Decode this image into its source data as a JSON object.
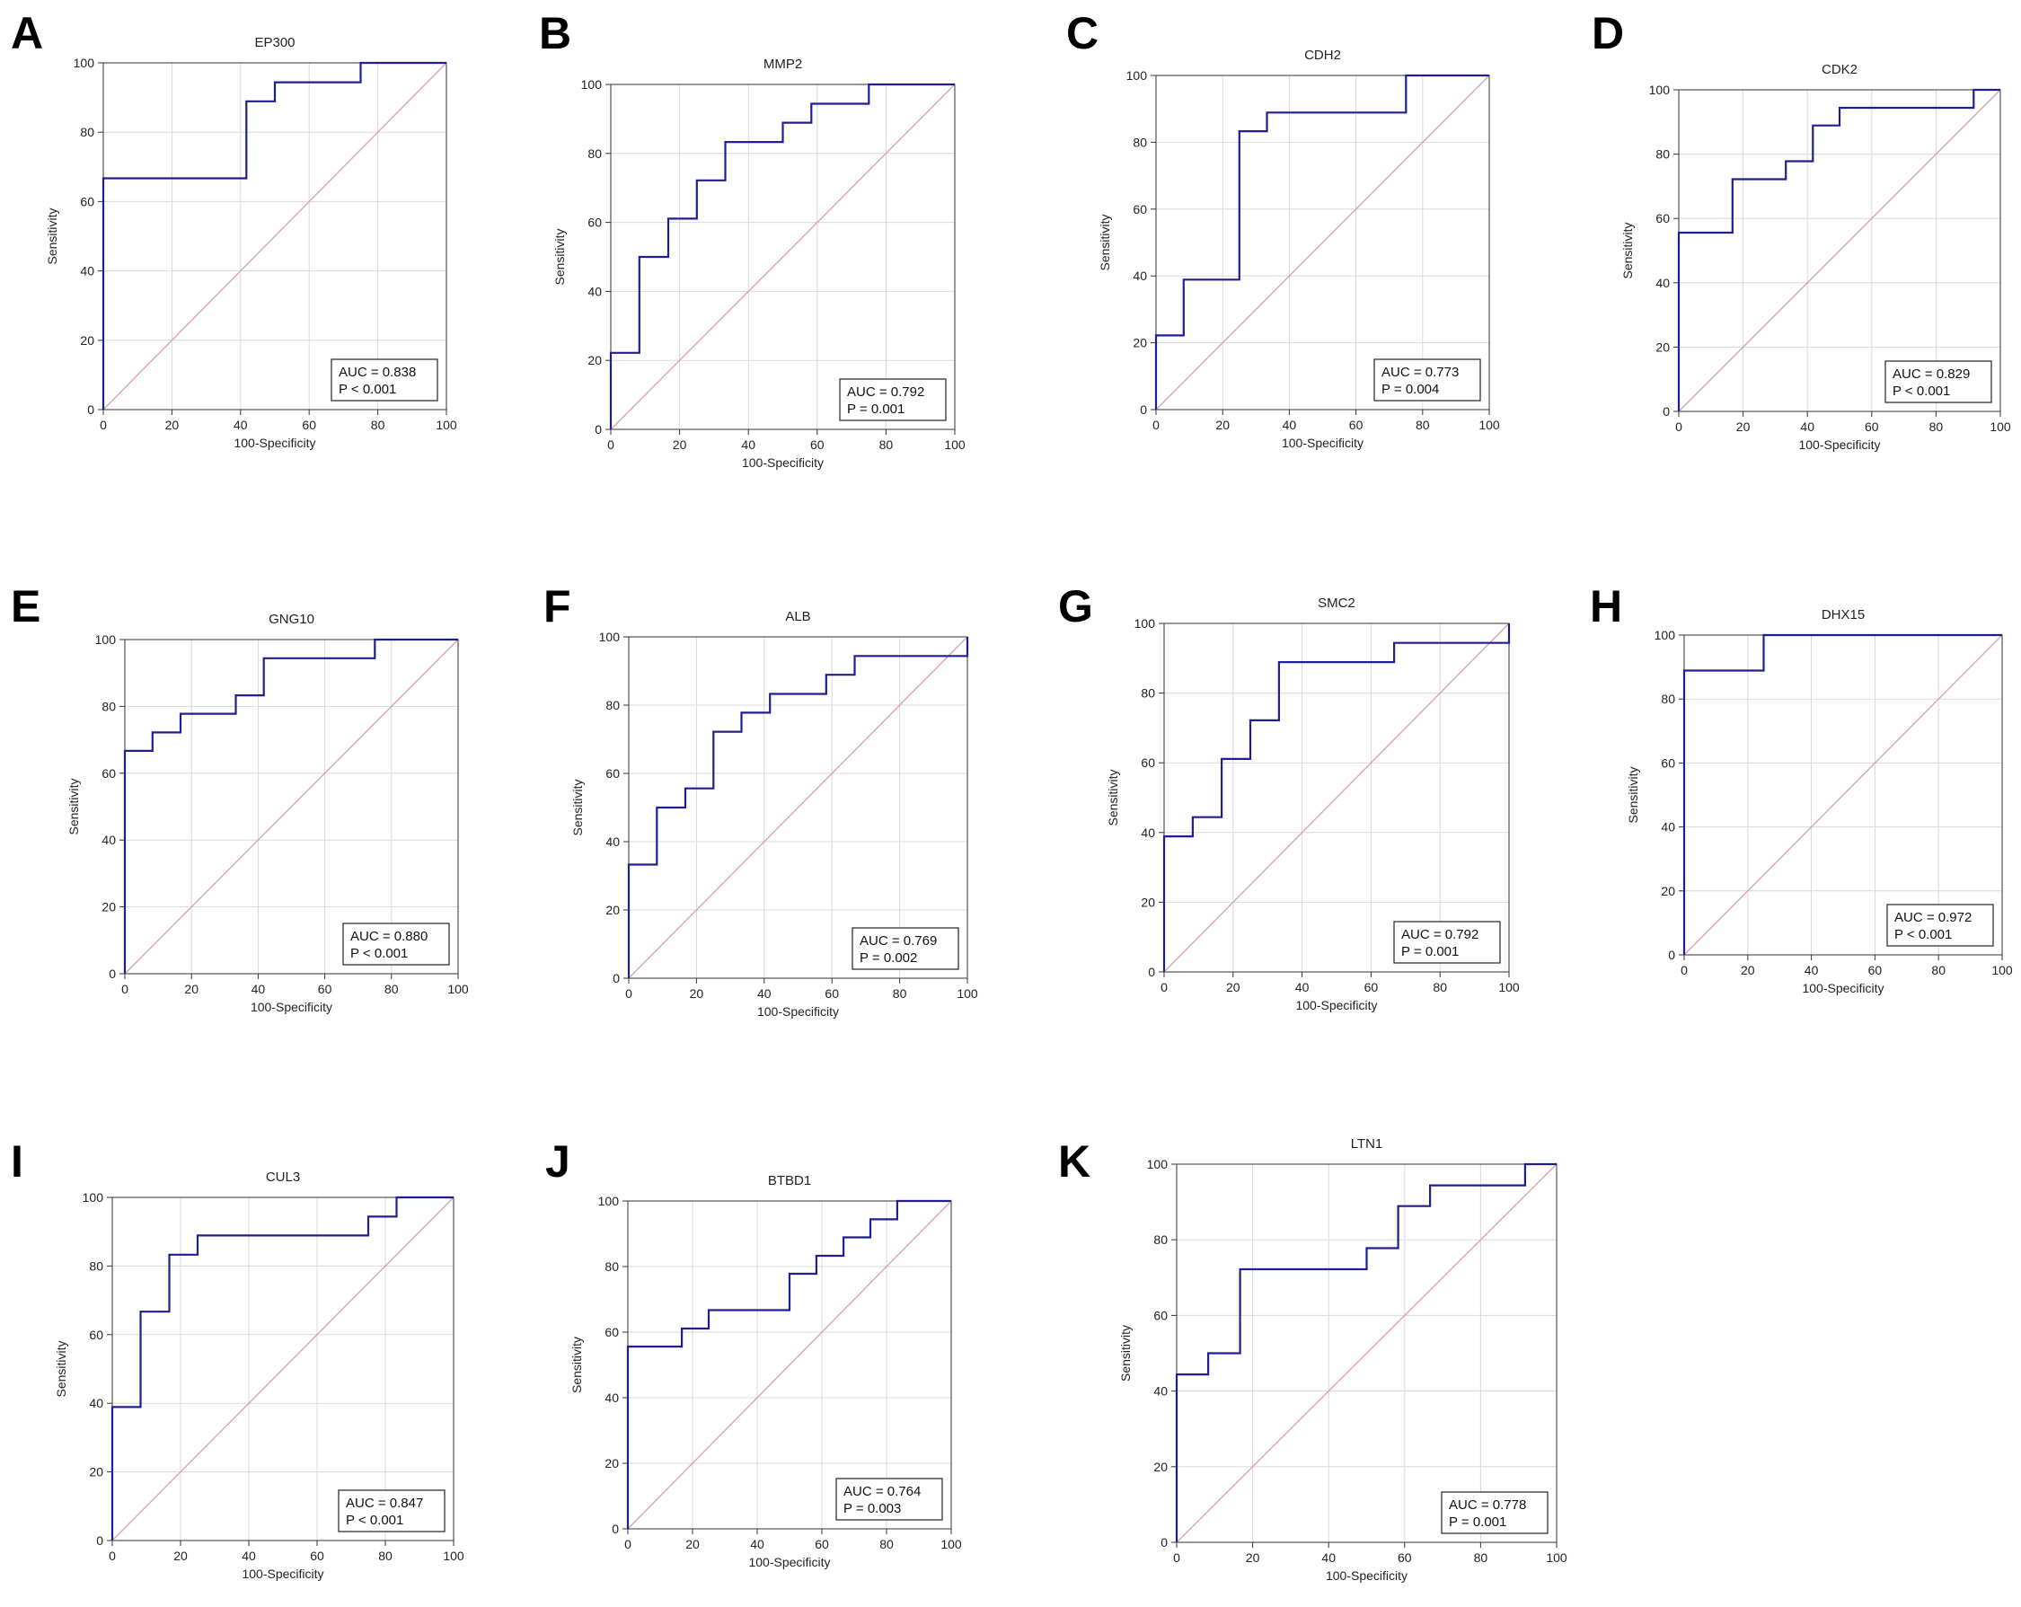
{
  "figure": {
    "x_axis_label": "100-Specificity",
    "y_axis_label": "Sensitivity",
    "ticks": [
      "0",
      "20",
      "40",
      "60",
      "80",
      "100"
    ],
    "roc_color": "#1f1f8f",
    "reference_color": "#d9a5ad",
    "grid_color": "#d9d9d9"
  },
  "chart_data": [
    {
      "letter": "A",
      "type": "line",
      "title": "EP300",
      "xlabel": "100-Specificity",
      "ylabel": "Sensitivity",
      "xlim": [
        0,
        100
      ],
      "ylim": [
        0,
        100
      ],
      "auc": "AUC = 0.838",
      "p": "P < 0.001",
      "roc_points": [
        [
          0,
          0
        ],
        [
          0,
          66.7
        ],
        [
          41.7,
          66.7
        ],
        [
          41.7,
          88.9
        ],
        [
          50,
          88.9
        ],
        [
          50,
          94.4
        ],
        [
          75,
          94.4
        ],
        [
          75,
          100
        ],
        [
          100,
          100
        ]
      ]
    },
    {
      "letter": "B",
      "type": "line",
      "title": "MMP2",
      "xlabel": "100-Specificity",
      "ylabel": "Sensitivity",
      "xlim": [
        0,
        100
      ],
      "ylim": [
        0,
        100
      ],
      "auc": "AUC = 0.792",
      "p": "P = 0.001",
      "roc_points": [
        [
          0,
          0
        ],
        [
          0,
          22.2
        ],
        [
          8.3,
          22.2
        ],
        [
          8.3,
          50
        ],
        [
          16.7,
          50
        ],
        [
          16.7,
          61.1
        ],
        [
          25,
          61.1
        ],
        [
          25,
          72.2
        ],
        [
          33.3,
          72.2
        ],
        [
          33.3,
          83.3
        ],
        [
          50,
          83.3
        ],
        [
          50,
          88.9
        ],
        [
          58.3,
          88.9
        ],
        [
          58.3,
          94.4
        ],
        [
          75,
          94.4
        ],
        [
          75,
          100
        ],
        [
          100,
          100
        ]
      ]
    },
    {
      "letter": "C",
      "type": "line",
      "title": "CDH2",
      "xlabel": "100-Specificity",
      "ylabel": "Sensitivity",
      "xlim": [
        0,
        100
      ],
      "ylim": [
        0,
        100
      ],
      "auc": "AUC = 0.773",
      "p": "P = 0.004",
      "roc_points": [
        [
          0,
          0
        ],
        [
          0,
          22.2
        ],
        [
          8.3,
          22.2
        ],
        [
          8.3,
          38.9
        ],
        [
          25,
          38.9
        ],
        [
          25,
          83.3
        ],
        [
          33.3,
          83.3
        ],
        [
          33.3,
          88.9
        ],
        [
          75,
          88.9
        ],
        [
          75,
          100
        ],
        [
          100,
          100
        ]
      ]
    },
    {
      "letter": "D",
      "type": "line",
      "title": "CDK2",
      "xlabel": "100-Specificity",
      "ylabel": "Sensitivity",
      "xlim": [
        0,
        100
      ],
      "ylim": [
        0,
        100
      ],
      "auc": "AUC = 0.829",
      "p": "P < 0.001",
      "roc_points": [
        [
          0,
          0
        ],
        [
          0,
          55.6
        ],
        [
          16.7,
          55.6
        ],
        [
          16.7,
          72.2
        ],
        [
          33.3,
          72.2
        ],
        [
          33.3,
          77.8
        ],
        [
          41.7,
          77.8
        ],
        [
          41.7,
          88.9
        ],
        [
          50,
          88.9
        ],
        [
          50,
          94.4
        ],
        [
          91.7,
          94.4
        ],
        [
          91.7,
          100
        ],
        [
          100,
          100
        ]
      ]
    },
    {
      "letter": "E",
      "type": "line",
      "title": "GNG10",
      "xlabel": "100-Specificity",
      "ylabel": "Sensitivity",
      "xlim": [
        0,
        100
      ],
      "ylim": [
        0,
        100
      ],
      "auc": "AUC = 0.880",
      "p": "P < 0.001",
      "roc_points": [
        [
          0,
          0
        ],
        [
          0,
          66.7
        ],
        [
          8.3,
          66.7
        ],
        [
          8.3,
          72.2
        ],
        [
          16.7,
          72.2
        ],
        [
          16.7,
          77.8
        ],
        [
          33.3,
          77.8
        ],
        [
          33.3,
          83.3
        ],
        [
          41.7,
          83.3
        ],
        [
          41.7,
          94.4
        ],
        [
          75,
          94.4
        ],
        [
          75,
          100
        ],
        [
          100,
          100
        ]
      ]
    },
    {
      "letter": "F",
      "type": "line",
      "title": "ALB",
      "xlabel": "100-Specificity",
      "ylabel": "Sensitivity",
      "xlim": [
        0,
        100
      ],
      "ylim": [
        0,
        100
      ],
      "auc": "AUC = 0.769",
      "p": "P = 0.002",
      "roc_points": [
        [
          0,
          0
        ],
        [
          0,
          33.3
        ],
        [
          8.3,
          33.3
        ],
        [
          8.3,
          50
        ],
        [
          16.7,
          50
        ],
        [
          16.7,
          55.6
        ],
        [
          25,
          55.6
        ],
        [
          25,
          72.2
        ],
        [
          33.3,
          72.2
        ],
        [
          33.3,
          77.8
        ],
        [
          41.7,
          77.8
        ],
        [
          41.7,
          83.3
        ],
        [
          58.3,
          83.3
        ],
        [
          58.3,
          88.9
        ],
        [
          66.7,
          88.9
        ],
        [
          66.7,
          94.4
        ],
        [
          100,
          94.4
        ],
        [
          100,
          100
        ]
      ]
    },
    {
      "letter": "G",
      "type": "line",
      "title": "SMC2",
      "xlabel": "100-Specificity",
      "ylabel": "Sensitivity",
      "xlim": [
        0,
        100
      ],
      "ylim": [
        0,
        100
      ],
      "auc": "AUC = 0.792",
      "p": "P = 0.001",
      "roc_points": [
        [
          0,
          0
        ],
        [
          0,
          38.9
        ],
        [
          8.3,
          38.9
        ],
        [
          8.3,
          44.4
        ],
        [
          16.7,
          44.4
        ],
        [
          16.7,
          61.1
        ],
        [
          25,
          61.1
        ],
        [
          25,
          72.2
        ],
        [
          33.3,
          72.2
        ],
        [
          33.3,
          88.9
        ],
        [
          66.7,
          88.9
        ],
        [
          66.7,
          94.4
        ],
        [
          100,
          94.4
        ],
        [
          100,
          100
        ]
      ]
    },
    {
      "letter": "H",
      "type": "line",
      "title": "DHX15",
      "xlabel": "100-Specificity",
      "ylabel": "Sensitivity",
      "xlim": [
        0,
        100
      ],
      "ylim": [
        0,
        100
      ],
      "auc": "AUC = 0.972",
      "p": "P < 0.001",
      "roc_points": [
        [
          0,
          0
        ],
        [
          0,
          88.9
        ],
        [
          25,
          88.9
        ],
        [
          25,
          100
        ],
        [
          100,
          100
        ]
      ]
    },
    {
      "letter": "I",
      "type": "line",
      "title": "CUL3",
      "xlabel": "100-Specificity",
      "ylabel": "Sensitivity",
      "xlim": [
        0,
        100
      ],
      "ylim": [
        0,
        100
      ],
      "auc": "AUC = 0.847",
      "p": "P < 0.001",
      "roc_points": [
        [
          0,
          0
        ],
        [
          0,
          38.9
        ],
        [
          8.3,
          38.9
        ],
        [
          8.3,
          66.7
        ],
        [
          16.7,
          66.7
        ],
        [
          16.7,
          83.3
        ],
        [
          25,
          83.3
        ],
        [
          25,
          88.9
        ],
        [
          75,
          88.9
        ],
        [
          75,
          94.4
        ],
        [
          83.3,
          94.4
        ],
        [
          83.3,
          100
        ],
        [
          100,
          100
        ]
      ]
    },
    {
      "letter": "J",
      "type": "line",
      "title": "BTBD1",
      "xlabel": "100-Specificity",
      "ylabel": "Sensitivity",
      "xlim": [
        0,
        100
      ],
      "ylim": [
        0,
        100
      ],
      "auc": "AUC = 0.764",
      "p": "P = 0.003",
      "roc_points": [
        [
          0,
          0
        ],
        [
          0,
          55.6
        ],
        [
          16.7,
          55.6
        ],
        [
          16.7,
          61.1
        ],
        [
          25,
          61.1
        ],
        [
          25,
          66.7
        ],
        [
          50,
          66.7
        ],
        [
          50,
          77.8
        ],
        [
          58.3,
          77.8
        ],
        [
          58.3,
          83.3
        ],
        [
          66.7,
          83.3
        ],
        [
          66.7,
          88.9
        ],
        [
          75,
          88.9
        ],
        [
          75,
          94.4
        ],
        [
          83.3,
          94.4
        ],
        [
          83.3,
          100
        ],
        [
          100,
          100
        ]
      ]
    },
    {
      "letter": "K",
      "type": "line",
      "title": "LTN1",
      "xlabel": "100-Specificity",
      "ylabel": "Sensitivity",
      "xlim": [
        0,
        100
      ],
      "ylim": [
        0,
        100
      ],
      "auc": "AUC = 0.778",
      "p": "P = 0.001",
      "roc_points": [
        [
          0,
          0
        ],
        [
          0,
          44.4
        ],
        [
          8.3,
          44.4
        ],
        [
          8.3,
          50
        ],
        [
          16.7,
          50
        ],
        [
          16.7,
          72.2
        ],
        [
          50,
          72.2
        ],
        [
          50,
          77.8
        ],
        [
          58.3,
          77.8
        ],
        [
          58.3,
          88.9
        ],
        [
          66.7,
          88.9
        ],
        [
          66.7,
          94.4
        ],
        [
          91.7,
          94.4
        ],
        [
          91.7,
          100
        ],
        [
          100,
          100
        ]
      ]
    }
  ]
}
